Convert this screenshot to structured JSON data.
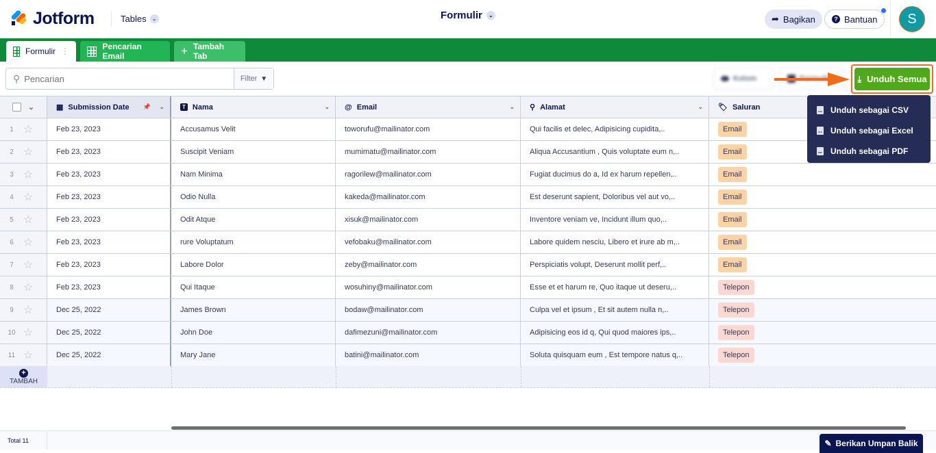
{
  "header": {
    "brand": "Jotform",
    "product": "Tables",
    "title": "Formulir",
    "share": "Bagikan",
    "help": "Bantuan",
    "avatar": "S"
  },
  "tabs": [
    {
      "label": "Formulir",
      "active": true
    },
    {
      "label": "Pencarian Email"
    },
    {
      "label": "Tambah Tab"
    }
  ],
  "toolbar": {
    "search_placeholder": "Pencarian",
    "filter": "Filter",
    "columns": "Kolom",
    "form": "Formulir",
    "download_all": "Unduh Semua"
  },
  "download_menu": [
    {
      "label": "Unduh sebagai CSV",
      "icon": "CSV"
    },
    {
      "label": "Unduh sebagai Excel",
      "icon": "XLS"
    },
    {
      "label": "Unduh sebagai PDF",
      "icon": "PDF"
    }
  ],
  "columns": [
    {
      "label": "Submission Date",
      "icon": "calendar-icon"
    },
    {
      "label": "Nama",
      "icon": "text-icon"
    },
    {
      "label": "Email",
      "icon": "at-icon"
    },
    {
      "label": "Alamat",
      "icon": "pin-icon"
    },
    {
      "label": "Saluran",
      "icon": "tag-icon"
    }
  ],
  "rows": [
    {
      "n": "1",
      "date": "Feb 23, 2023",
      "name": "Accusamus Velit",
      "email": "toworufu@mailinator.com",
      "addr": "Qui facilis et delec, Adipisicing cupidita,..",
      "ch": "Email"
    },
    {
      "n": "2",
      "date": "Feb 23, 2023",
      "name": "Suscipit Veniam",
      "email": "mumimatu@mailinator.com",
      "addr": "Aliqua Accusantium , Quis voluptate eum n,..",
      "ch": "Email"
    },
    {
      "n": "3",
      "date": "Feb 23, 2023",
      "name": "Nam Minima",
      "email": "ragorilew@mailinator.com",
      "addr": "Fugiat ducimus do a, Id ex harum repellen,..",
      "ch": "Email"
    },
    {
      "n": "4",
      "date": "Feb 23, 2023",
      "name": "Odio Nulla",
      "email": "kakeda@mailinator.com",
      "addr": "Est deserunt sapient, Doloribus vel aut vo,..",
      "ch": "Email"
    },
    {
      "n": "5",
      "date": "Feb 23, 2023",
      "name": "Odit Atque",
      "email": "xisuk@mailinator.com",
      "addr": "Inventore veniam ve, Incidunt illum quo,..",
      "ch": "Email"
    },
    {
      "n": "6",
      "date": "Feb 23, 2023",
      "name": "rure Voluptatum",
      "email": "vefobaku@mailinator.com",
      "addr": "Labore quidem nesciu, Libero et irure ab m,..",
      "ch": "Email"
    },
    {
      "n": "7",
      "date": "Feb 23, 2023",
      "name": "Labore Dolor",
      "email": "zeby@mailinator.com",
      "addr": "Perspiciatis volupt, Deserunt mollit perf,..",
      "ch": "Email"
    },
    {
      "n": "8",
      "date": "Feb 23, 2023",
      "name": "Qui Itaque",
      "email": "wosuhiny@mailinator.com",
      "addr": "Esse et et harum re, Quo itaque ut deseru,..",
      "ch": "Telepon"
    },
    {
      "n": "9",
      "date": "Dec 25, 2022",
      "name": "James Brown",
      "email": "bodaw@mailinator.com",
      "addr": "Culpa vel et ipsum , Et sit autem nulla n,..",
      "ch": "Telepon"
    },
    {
      "n": "10",
      "date": "Dec 25, 2022",
      "name": "John Doe",
      "email": "dafimezuni@mailinator.com",
      "addr": "Adipisicing eos id q, Qui quod maiores ips,..",
      "ch": "Telepon"
    },
    {
      "n": "11",
      "date": "Dec 25, 2022",
      "name": "Mary Jane",
      "email": "batini@mailinator.com",
      "addr": "Soluta quisquam eum , Est tempore natus q,..",
      "ch": "Telepon"
    }
  ],
  "add_row": "TAMBAH",
  "footer": {
    "total": "Total 11",
    "feedback": "Berikan Umpan Balik"
  },
  "colors": {
    "green": "#0f8a3a",
    "download": "#4fa91a",
    "highlight": "#f26a1b",
    "navy": "#0a1551"
  }
}
